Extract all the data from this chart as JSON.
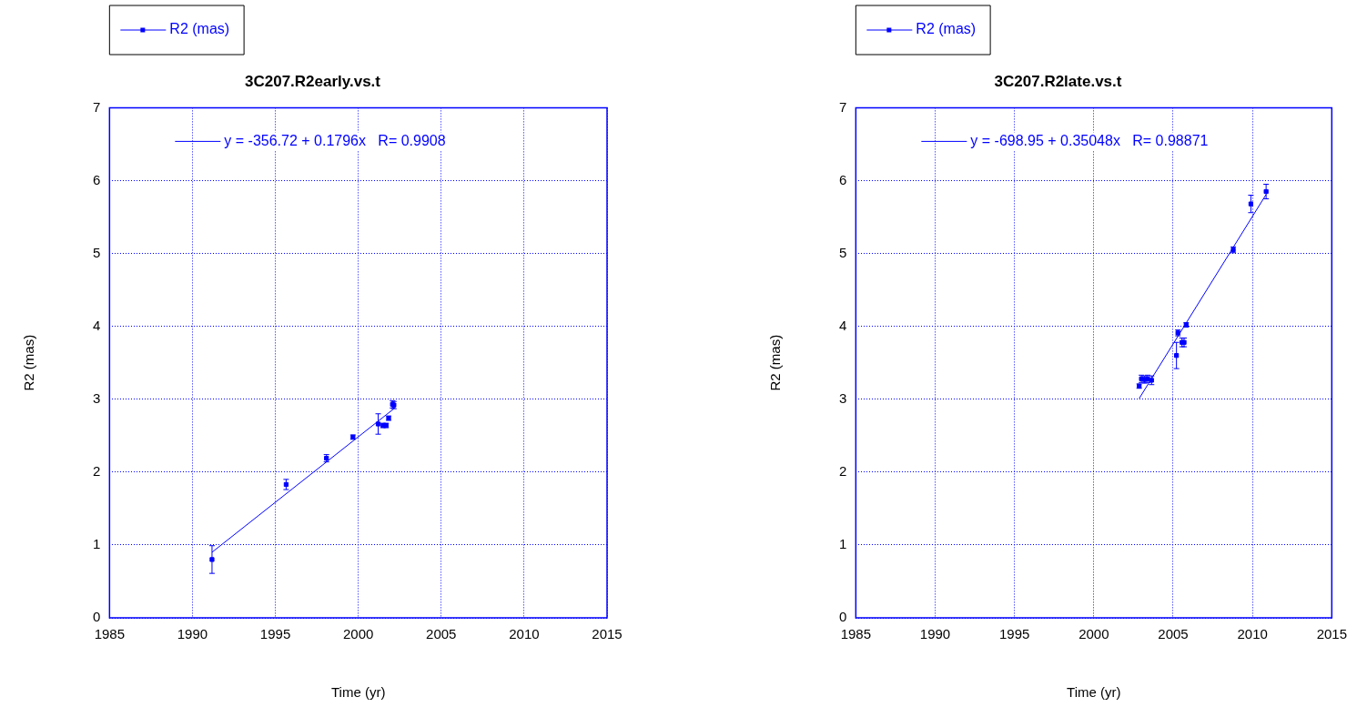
{
  "chart_data": [
    {
      "type": "scatter",
      "title": "3C207.R2early.vs.t",
      "xlabel": "Time (yr)",
      "ylabel": "R2 (mas)",
      "xlim": [
        1985,
        2015
      ],
      "xticks": [
        1985,
        1990,
        1995,
        2000,
        2005,
        2010,
        2015
      ],
      "ylim": [
        0,
        7
      ],
      "yticks": [
        0,
        1,
        2,
        3,
        4,
        5,
        6,
        7
      ],
      "grid": true,
      "legend": "top left",
      "marker": "square",
      "series": [
        {
          "name": "R2 (mas)",
          "color": "#0000ff",
          "x": [
            1991.18,
            1995.65,
            1998.08,
            1999.68,
            2001.2,
            2001.49,
            2001.68,
            2001.83,
            2002.06,
            2002.15
          ],
          "values": [
            0.8,
            1.83,
            2.19,
            2.48,
            2.66,
            2.64,
            2.64,
            2.74,
            2.93,
            2.92
          ],
          "errors": [
            0.19,
            0.07,
            0.05,
            0.03,
            0.14,
            0.03,
            0.03,
            0.03,
            0.05,
            0.05
          ]
        },
        {
          "type": "line",
          "name": "y = -356.72 + 0.1796x   R= 0.9908",
          "color": "#0000ff",
          "marker": "none",
          "x": [
            1991.18,
            2002.15
          ],
          "values": [
            0.9,
            2.87
          ]
        }
      ]
    },
    {
      "type": "scatter",
      "title": "3C207.R2late.vs.t",
      "xlabel": "Time (yr)",
      "ylabel": "R2 (mas)",
      "xlim": [
        1985,
        2015
      ],
      "xticks": [
        1985,
        1990,
        1995,
        2000,
        2005,
        2010,
        2015
      ],
      "ylim": [
        0,
        7
      ],
      "yticks": [
        0,
        1,
        2,
        3,
        4,
        5,
        6,
        7
      ],
      "grid": true,
      "legend": "top left",
      "marker": "square",
      "series": [
        {
          "name": "R2 (mas)",
          "color": "#0000ff",
          "x": [
            2002.86,
            2003.0,
            2003.2,
            2003.39,
            2003.64,
            2005.21,
            2005.3,
            2005.56,
            2005.69,
            2005.82,
            2008.79,
            2009.9,
            2010.86
          ],
          "values": [
            3.18,
            3.28,
            3.27,
            3.28,
            3.26,
            3.6,
            3.91,
            3.78,
            3.78,
            4.02,
            5.05,
            5.68,
            5.85
          ],
          "errors": [
            0.03,
            0.05,
            0.05,
            0.05,
            0.06,
            0.18,
            0.04,
            0.06,
            0.06,
            0.03,
            0.04,
            0.12,
            0.1
          ]
        },
        {
          "type": "line",
          "name": "y = -698.95 + 0.35048x   R= 0.98871",
          "color": "#0000ff",
          "marker": "none",
          "x": [
            2002.86,
            2010.86
          ],
          "values": [
            3.01,
            5.81
          ]
        }
      ]
    }
  ]
}
